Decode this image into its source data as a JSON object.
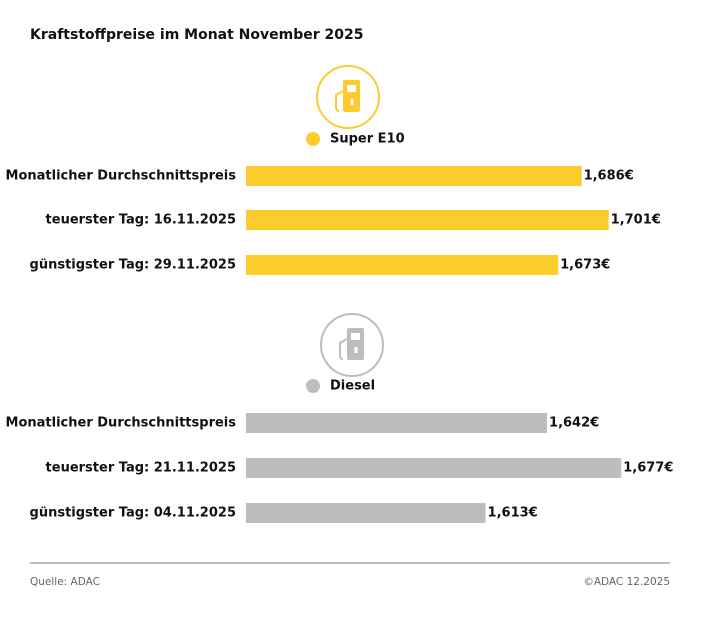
{
  "title": "Kraftstoffpreise im Monat November 2025",
  "source": "Quelle: ADAC",
  "copyright": "©ADAC 12.2025",
  "chart_data": [
    {
      "type": "bar",
      "orientation": "horizontal",
      "categories": [
        "Monatlicher Durchschnittspreis",
        "teuerster Tag: 16.11.2025",
        "günstigster Tag: 29.11.2025"
      ],
      "series": [
        {
          "name": "Super E10",
          "color": "#fccb2c",
          "values": [
            1.686,
            1.701,
            1.673
          ],
          "value_labels": [
            "1,686€",
            "1,701€",
            "1,673€"
          ]
        }
      ],
      "xlim": [
        1.5,
        1.735
      ]
    },
    {
      "type": "bar",
      "orientation": "horizontal",
      "categories": [
        "Monatlicher Durchschnittspreis",
        "teuerster Tag: 21.11.2025",
        "günstigster Tag: 04.11.2025"
      ],
      "series": [
        {
          "name": "Diesel",
          "color": "#bdbdbd",
          "values": [
            1.642,
            1.677,
            1.613
          ],
          "value_labels": [
            "1,642€",
            "1,677€",
            "1,613€"
          ]
        }
      ],
      "xlim": [
        1.5,
        1.7
      ]
    }
  ]
}
